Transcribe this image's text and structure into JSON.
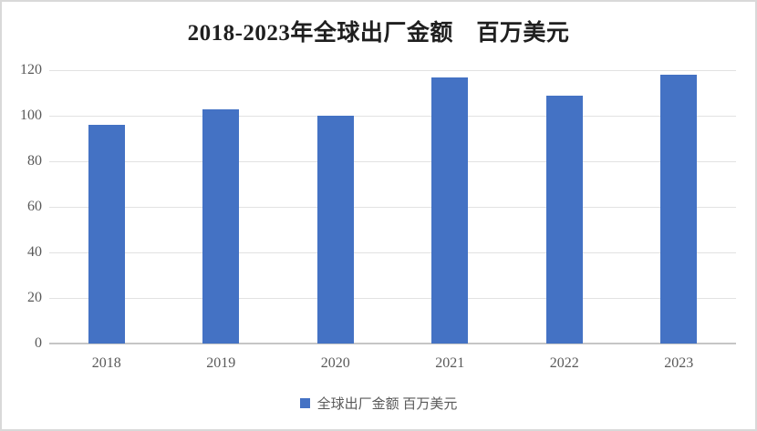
{
  "title": "2018-2023年全球出厂金额　百万美元",
  "legend": {
    "label": "全球出厂金额 百万美元"
  },
  "colors": {
    "bar": "#4472C4",
    "gridline": "#E2E2E2",
    "axis_line": "#C6C6C6",
    "tick_label": "#595959",
    "title_text": "#1F1F1F",
    "frame_border": "#D9D9D9"
  },
  "chart_data": {
    "type": "bar",
    "title": "2018-2023年全球出厂金额　百万美元",
    "categories": [
      "2018",
      "2019",
      "2020",
      "2021",
      "2022",
      "2023"
    ],
    "values": [
      96,
      103,
      100,
      117,
      109,
      118
    ],
    "series": [
      {
        "name": "全球出厂金额 百万美元",
        "values": [
          96,
          103,
          100,
          117,
          109,
          118
        ]
      }
    ],
    "xlabel": "",
    "ylabel": "",
    "ylim": [
      0,
      120
    ],
    "ytick_step": 20,
    "yticks": [
      0,
      20,
      40,
      60,
      80,
      100,
      120
    ],
    "grid": true,
    "legend_entries": [
      "全球出厂金额 百万美元"
    ],
    "legend_position": "bottom",
    "bar_color": "#4472C4"
  }
}
